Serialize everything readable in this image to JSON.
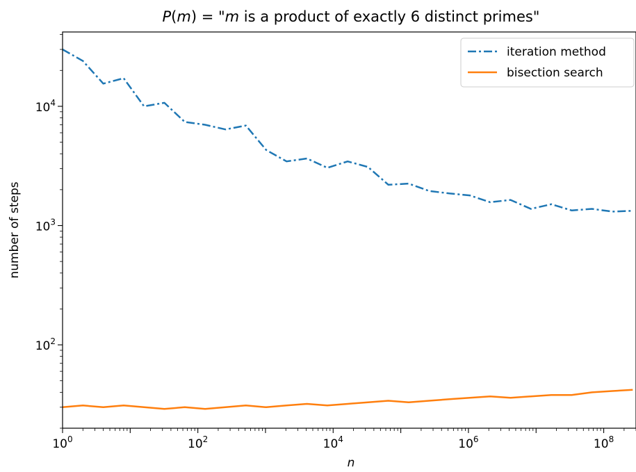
{
  "chart_data": {
    "type": "line",
    "title": "P(m) = \"m is a product of exactly 6 distinct primes\"",
    "title_parts": {
      "func": "P",
      "open": "(",
      "var": "m",
      "close_eq": ") = \"",
      "var2": "m",
      "rest": " is a product of exactly 6 distinct primes\""
    },
    "xlabel": "n",
    "ylabel": "number of steps",
    "xscale": "log",
    "yscale": "log",
    "xlim": [
      1,
      300000000
    ],
    "ylim": [
      20,
      42000
    ],
    "x_ticks": [
      {
        "base": "10",
        "exp": "0",
        "value": 1
      },
      {
        "base": "10",
        "exp": "2",
        "value": 100
      },
      {
        "base": "10",
        "exp": "4",
        "value": 10000
      },
      {
        "base": "10",
        "exp": "6",
        "value": 1000000
      },
      {
        "base": "10",
        "exp": "8",
        "value": 100000000
      }
    ],
    "y_ticks": [
      {
        "base": "10",
        "exp": "2",
        "value": 100
      },
      {
        "base": "10",
        "exp": "3",
        "value": 1000
      },
      {
        "base": "10",
        "exp": "4",
        "value": 10000
      }
    ],
    "grid": false,
    "legend_position": "top-right",
    "x": [
      1,
      2,
      4,
      8,
      16,
      32,
      64,
      128,
      256,
      512,
      1024,
      2048,
      4096,
      8192,
      16384,
      32768,
      65536,
      131072,
      262144,
      524288,
      1048576,
      2097152,
      4194304,
      8388608,
      16777216,
      33554432,
      67108864,
      134217728,
      268435456
    ],
    "series": [
      {
        "name": "iteration method",
        "color": "#1f77b4",
        "style": "dashdot",
        "values": [
          30000,
          24000,
          15500,
          17200,
          10000,
          10700,
          7400,
          7000,
          6400,
          6900,
          4300,
          3450,
          3650,
          3050,
          3450,
          3100,
          2200,
          2250,
          1950,
          1860,
          1790,
          1570,
          1640,
          1380,
          1510,
          1340,
          1380,
          1310,
          1330
        ]
      },
      {
        "name": "bisection search",
        "color": "#ff7f0e",
        "style": "solid",
        "values": [
          30,
          31,
          30,
          31,
          30,
          29,
          30,
          29,
          30,
          31,
          30,
          31,
          32,
          31,
          32,
          33,
          34,
          33,
          34,
          35,
          36,
          37,
          36,
          37,
          38,
          38,
          40,
          41,
          42
        ]
      }
    ]
  }
}
